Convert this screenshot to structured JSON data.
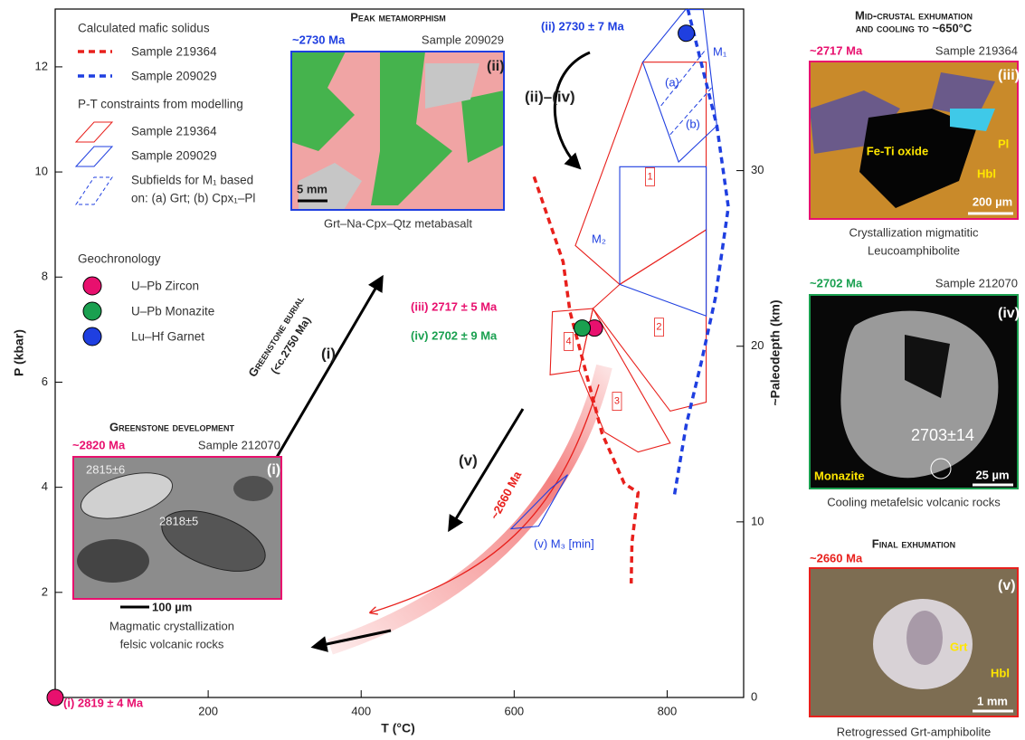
{
  "chart_data": {
    "type": "scatter",
    "xlabel": "T (°C)",
    "ylabel": "P (kbar)",
    "y2label": "~Paleodepth (km)",
    "xlim": [
      0,
      900
    ],
    "xticks": [
      200,
      400,
      600,
      800
    ],
    "ylim": [
      0,
      13.1
    ],
    "yticks": [
      2,
      4,
      6,
      8,
      10,
      12
    ],
    "y2lim": [
      0,
      39.2
    ],
    "y2ticks": [
      0,
      10,
      20,
      30
    ],
    "series": [
      {
        "name": "U–Pb Zircon",
        "color": "#e8106e",
        "x": [
          0,
          705
        ],
        "values": [
          0,
          7.03
        ]
      },
      {
        "name": "U–Pb Monazite",
        "color": "#1aa050",
        "x": [
          689
        ],
        "values": [
          7.03
        ]
      },
      {
        "name": "Lu–Hf Garnet",
        "color": "#1f3fe0",
        "x": [
          825
        ],
        "values": [
          12.64
        ]
      }
    ],
    "solidus": {
      "title": "Calculated mafic solidus",
      "lines": [
        {
          "name": "Sample 219364",
          "color": "#e8201c",
          "x": [
            626,
            664,
            673,
            715,
            744,
            762,
            754,
            753
          ],
          "values": [
            9.91,
            8.29,
            7.34,
            5.02,
            4.07,
            3.9,
            2.95,
            2.17
          ]
        },
        {
          "name": "Sample 209029",
          "color": "#1f3fe0",
          "x": [
            827,
            865,
            880,
            863,
            845,
            825,
            809
          ],
          "values": [
            13.1,
            10.88,
            9.33,
            7.6,
            6.4,
            5.19,
            3.81
          ]
        }
      ]
    },
    "constraints": {
      "title": "P-T constraints from modelling",
      "samples": [
        {
          "name": "Sample 219364",
          "color": "#e8201c"
        },
        {
          "name": "Sample 209029",
          "color": "#1f3fe0"
        }
      ],
      "subfield_note": [
        "Subfields for M₁ based",
        "on: (a) Grt; (b) Cpx₁–Pl"
      ]
    },
    "geochronology_title": "Geochronology",
    "fields": [
      {
        "label": "1",
        "color": "#e8201c",
        "x": [
          768,
          851,
          851,
          738,
          680
        ],
        "values": [
          12.09,
          12.09,
          8.9,
          7.86,
          8.6
        ]
      },
      {
        "label": "2",
        "color": "#e8201c",
        "x": [
          703,
          738,
          851,
          851,
          804
        ],
        "values": [
          7.4,
          7.86,
          8.9,
          5.62,
          5.45
        ]
      },
      {
        "label": "3",
        "color": "#e8201c",
        "x": [
          703,
          804,
          762,
          718,
          685
        ],
        "values": [
          7.4,
          4.84,
          4.67,
          5.05,
          6.22
        ]
      },
      {
        "label": "4",
        "color": "#e8201c",
        "x": [
          650,
          703,
          685,
          647
        ],
        "values": [
          7.34,
          7.4,
          6.22,
          6.14
        ]
      }
    ],
    "blue_fields": [
      {
        "color": "#1f3fe0",
        "x": [
          768,
          824,
          847,
          865,
          815
        ],
        "values": [
          12.09,
          13.09,
          13.09,
          10.88,
          10.19
        ]
      },
      {
        "color": "#1f3fe0",
        "x": [
          738,
          851,
          851,
          738
        ],
        "values": [
          10.1,
          10.1,
          7.26,
          7.86
        ]
      },
      {
        "color": "#1f3fe0",
        "x": [
          596,
          648,
          670,
          632
        ],
        "values": [
          3.21,
          3.98,
          4.24,
          3.26
        ]
      }
    ],
    "subfields": [
      {
        "color": "#1f3fe0",
        "x": [
          792,
          851
        ],
        "values": [
          11.26,
          12.34
        ]
      },
      {
        "color": "#1f3fe0",
        "x": [
          804,
          858
        ],
        "values": [
          10.71,
          11.6
        ]
      }
    ],
    "annotations": {
      "zircon_age": "(i) 2819 ± 4 Ma",
      "garnet_age": "(ii) 2730 ± 7 Ma",
      "zircon_age2": "(iii) 2717 ± 5 Ma",
      "monazite_age": "(iv) 2702 ± 9 Ma",
      "m1": "M₁",
      "a": "(a)",
      "b": "(b)",
      "m2": "M₂",
      "m3": "(v) M₃ [min]",
      "path_ii_iv": "(ii)–(iv)",
      "path_i": "(i)",
      "path_v": "(v)",
      "exhumation_age": "~2660 Ma",
      "burial": "Greenstone burial",
      "burial_age": "(<c.2750 Ma)"
    }
  },
  "insets": {
    "peak": {
      "title": "Peak metamorphism",
      "age": "~2730 Ma",
      "sample": "Sample 209029",
      "tag": "(ii)",
      "scale": "5 mm",
      "caption": "Grt–Na-Cpx–Qtz metabasalt"
    },
    "development": {
      "title": "Greenstone development",
      "age": "~2820 Ma",
      "sample": "Sample 212070",
      "tag": "(i)",
      "grain1": "2815±6",
      "grain2": "2818±5",
      "scale": "100 µm",
      "caption": [
        "Magmatic crystallization",
        "felsic volcanic rocks"
      ]
    },
    "mid_crustal": {
      "title": [
        "Mid-crustal exhumation",
        "and cooling to ~650°C"
      ],
      "age": "~2717 Ma",
      "sample": "Sample 219364",
      "tag": "(iii)",
      "oxide": "Fe-Ti oxide",
      "pl": "Pl",
      "hbl": "Hbl",
      "scale": "200 µm",
      "caption": [
        "Crystallization migmatitic",
        "Leucoamphibolite"
      ]
    },
    "cooling": {
      "age": "~2702 Ma",
      "sample": "Sample 212070",
      "tag": "(iv)",
      "grain": "2703±14",
      "mineral": "Monazite",
      "scale": "25 µm",
      "caption": "Cooling metafelsic volcanic rocks"
    },
    "final": {
      "title": "Final exhumation",
      "age": "~2660 Ma",
      "tag": "(v)",
      "grt": "Grt",
      "hbl": "Hbl",
      "scale": "1 mm",
      "caption": "Retrogressed Grt-amphibolite"
    }
  }
}
